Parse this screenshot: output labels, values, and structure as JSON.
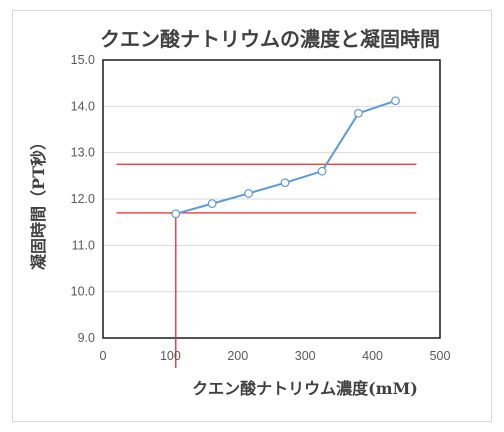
{
  "chart_data": {
    "type": "line",
    "title": "クエン酸ナトリウムの濃度と凝固時間",
    "xlabel": "クエン酸ナトリウム濃度(mM)",
    "ylabel": "凝固時間（PT秒）",
    "xlim": [
      0,
      500
    ],
    "ylim": [
      9.0,
      15.0
    ],
    "x_ticks": [
      "0",
      "100",
      "200",
      "300",
      "400",
      "500"
    ],
    "y_ticks": [
      "9.0",
      "10.0",
      "11.0",
      "12.0",
      "13.0",
      "14.0",
      "15.0"
    ],
    "grid": true,
    "series": [
      {
        "x": [
          108,
          162,
          216,
          270,
          325,
          379,
          434
        ],
        "y": [
          11.68,
          11.9,
          12.12,
          12.35,
          12.6,
          13.85,
          14.12
        ],
        "color": "#5b9bd5"
      }
    ],
    "reference_lines": {
      "horizontal": [
        {
          "y": 12.75,
          "x_from": 20,
          "x_to": 465
        },
        {
          "y": 11.7,
          "x_from": 20,
          "x_to": 465
        }
      ],
      "vertical": [
        {
          "x": 108,
          "y_from": 9.0,
          "y_to": 11.7
        }
      ],
      "color": "#e8282b"
    }
  }
}
